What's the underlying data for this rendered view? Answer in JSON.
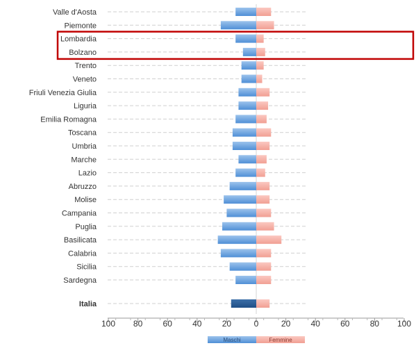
{
  "chart_data": {
    "type": "bar",
    "orientation": "horizontal-diverging",
    "categories": [
      "Valle d'Aosta",
      "Piemonte",
      "Lombardia",
      "Bolzano",
      "Trento",
      "Veneto",
      "Friuli Venezia Giulia",
      "Liguria",
      "Emilia Romagna",
      "Toscana",
      "Umbria",
      "Marche",
      "Lazio",
      "Abruzzo",
      "Molise",
      "Campania",
      "Puglia",
      "Basilicata",
      "Calabria",
      "Sicilia",
      "Sardegna",
      "Italia"
    ],
    "emphasized_category": "Italia",
    "series": [
      {
        "name": "Maschi",
        "direction": "left",
        "color": "#5b9bd5",
        "values": [
          14,
          24,
          14,
          9,
          10,
          10,
          12,
          12,
          14,
          16,
          16,
          12,
          14,
          18,
          22,
          20,
          23,
          26,
          24,
          18,
          14,
          17
        ]
      },
      {
        "name": "Femmine",
        "direction": "right",
        "color": "#f4a9a0",
        "values": [
          10,
          12,
          5,
          6,
          5,
          4,
          9,
          8,
          7,
          10,
          9,
          7,
          6,
          9,
          9,
          10,
          12,
          17,
          10,
          10,
          10,
          9
        ]
      }
    ],
    "highlight": {
      "categories": [
        "Lombardia",
        "Bolzano"
      ],
      "color": "#c00000"
    },
    "xaxis": {
      "ticks": [
        -100,
        -80,
        -60,
        -40,
        -20,
        0,
        20,
        40,
        60,
        80,
        100
      ],
      "tick_labels": [
        "100",
        "80",
        "60",
        "40",
        "20",
        "0",
        "20",
        "40",
        "60",
        "80",
        "100"
      ],
      "range": [
        -100,
        100
      ]
    },
    "legend": {
      "placement": "bottom-center"
    },
    "grid": "dotted-horizontal"
  }
}
